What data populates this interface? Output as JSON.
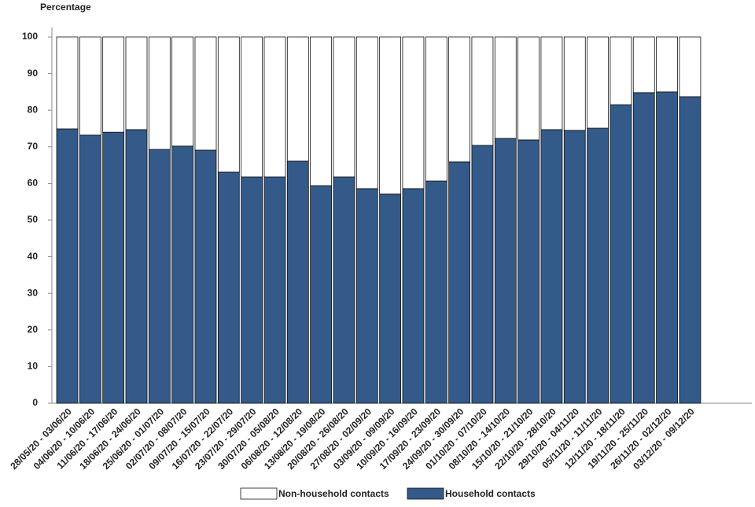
{
  "chart_data": {
    "type": "stacked-bar",
    "y_label": "Percentage",
    "categories": [
      "28/05/20 - 03/06/20",
      "04/06/20 - 10/06/20",
      "11/06/20 - 17/06/20",
      "18/06/20 - 24/06/20",
      "25/06/20 - 01/07/20",
      "02/07/20 - 08/07/20",
      "09/07/20 - 15/07/20",
      "16/07/20 - 22/07/20",
      "23/07/20 - 29/07/20",
      "30/07/20 - 05/08/20",
      "06/08/20 - 12/08/20",
      "13/08/20 - 19/08/20",
      "20/08/20 - 26/08/20",
      "27/08/20 - 02/09/20",
      "03/09/20 - 09/09/20",
      "10/09/20 - 16/09/20",
      "17/09/20 - 23/09/20",
      "24/09/20 - 30/09/20",
      "01/10/20 - 07/10/20",
      "08/10/20 - 14/10/20",
      "15/10/20 - 21/10/20",
      "22/10/20 - 28/10/20",
      "29/10/20 - 04/11/20",
      "05/11/20 - 11/11/20",
      "12/11/20 - 18/11/20",
      "19/11/20 - 25/11/20",
      "26/11/20 - 02/12/20",
      "03/12/20 - 09/12/20"
    ],
    "series": [
      {
        "name": "Non-household contacts",
        "color": "#ffffff",
        "values": [
          25.1,
          26.8,
          26.0,
          25.3,
          30.7,
          29.8,
          30.9,
          36.9,
          38.2,
          38.2,
          33.9,
          40.6,
          38.2,
          41.4,
          42.9,
          41.4,
          39.3,
          34.1,
          29.6,
          27.7,
          28.1,
          25.3,
          25.5,
          24.9,
          18.5,
          15.2,
          15.0,
          16.3
        ]
      },
      {
        "name": "Household contacts",
        "color": "#345a89",
        "values": [
          74.9,
          73.2,
          74.0,
          74.7,
          69.3,
          70.2,
          69.1,
          63.1,
          61.8,
          61.8,
          66.1,
          59.4,
          61.8,
          58.6,
          57.1,
          58.6,
          60.7,
          65.9,
          70.4,
          72.3,
          71.9,
          74.7,
          74.5,
          75.1,
          81.5,
          84.8,
          85.0,
          83.7
        ]
      }
    ],
    "ylim": [
      0,
      100
    ],
    "yticks": [
      0,
      10,
      20,
      30,
      40,
      50,
      60,
      70,
      80,
      90,
      100
    ]
  }
}
